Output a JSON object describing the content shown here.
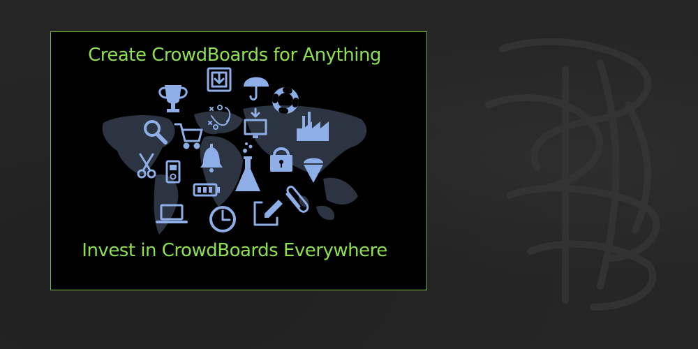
{
  "banner": {
    "headline_top": "Create CrowdBoards for Anything",
    "headline_bottom": "Invest in CrowdBoards Everywhere"
  },
  "colors": {
    "page_background": "#262626",
    "panel_background": "#000000",
    "panel_border": "#6fbf3a",
    "headline_text": "#8ee04f",
    "icon_color": "#8eaee8",
    "map_color": "#2b3440"
  },
  "icons": [
    "trophy-icon",
    "download-box-icon",
    "umbrella-icon",
    "lifebuoy-icon",
    "magnifier-icon",
    "shopping-cart-icon",
    "strategy-play-icon",
    "monitor-download-icon",
    "factory-icon",
    "scissors-icon",
    "bell-icon",
    "padlock-icon",
    "ice-cream-icon",
    "media-player-icon",
    "battery-icon",
    "flask-icon",
    "paperclip-icon",
    "laptop-icon",
    "clock-icon",
    "edit-icon"
  ]
}
